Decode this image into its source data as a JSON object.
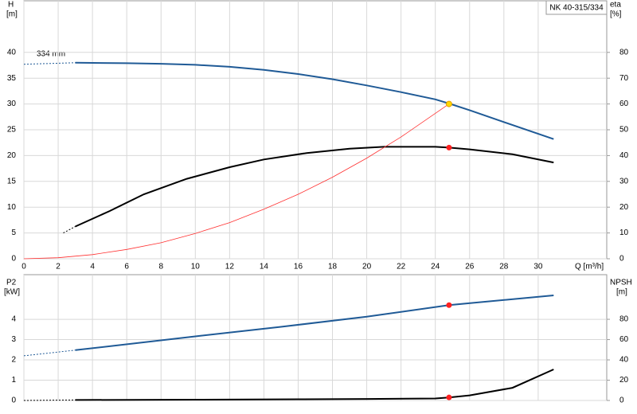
{
  "chart_data": [
    {
      "type": "line",
      "title": "NK 40-315/334",
      "annotation": "334 mm",
      "y_label": [
        "H",
        "[m]"
      ],
      "y2_label": [
        "eta",
        "[%]"
      ],
      "x_label": "Q [m³/h]",
      "xlim": [
        0,
        34
      ],
      "xticks": [
        0,
        2,
        4,
        6,
        8,
        10,
        12,
        14,
        16,
        18,
        20,
        22,
        24,
        26,
        28,
        30
      ],
      "show_xtick_labels": true,
      "ylim": [
        0,
        50
      ],
      "yticks": [
        0,
        5,
        10,
        15,
        20,
        25,
        30,
        35,
        40
      ],
      "y2lim": [
        0,
        100
      ],
      "y2ticks": [
        0,
        10,
        20,
        30,
        40,
        50,
        60,
        70,
        80
      ],
      "grid": true,
      "series": [
        {
          "style": "dashed",
          "color": "#1f5a96",
          "x": [
            0,
            3
          ],
          "values": [
            37.7,
            38
          ]
        },
        {
          "style": "solid",
          "color": "#1f5a96",
          "x": [
            3,
            6,
            8,
            10,
            12,
            14,
            16,
            18,
            20,
            22,
            24,
            24.8,
            26,
            28,
            30.9
          ],
          "values": [
            38,
            37.9,
            37.8,
            37.6,
            37.2,
            36.6,
            35.8,
            34.8,
            33.6,
            32.3,
            30.9,
            30.1,
            28.8,
            26.5,
            23.2
          ]
        },
        {
          "style": "dashed",
          "color": "#000000",
          "axis": "y2",
          "x": [
            2.3,
            3
          ],
          "values": [
            10,
            12.5
          ]
        },
        {
          "style": "solid",
          "color": "#000000",
          "axis": "y2",
          "x": [
            3,
            5,
            7,
            9.5,
            12,
            14,
            16.5,
            19,
            21,
            24,
            24.8,
            26,
            28.5,
            30.9
          ],
          "values": [
            12.5,
            18.5,
            25,
            31,
            35.5,
            38.5,
            41,
            42.7,
            43.4,
            43.4,
            43.1,
            42.4,
            40.5,
            37.3
          ]
        },
        {
          "style": "thin",
          "color": "#ff3030",
          "x": [
            0,
            2,
            4,
            6,
            8,
            10,
            12,
            14,
            16,
            18,
            20,
            22,
            24.8
          ],
          "values": [
            0,
            0.2,
            0.8,
            1.8,
            3.1,
            4.9,
            7,
            9.6,
            12.5,
            15.8,
            19.5,
            23.6,
            30
          ]
        },
        {
          "style": "marker",
          "color": "#ffd700",
          "x": [
            24.8
          ],
          "values": [
            30
          ]
        },
        {
          "style": "marker",
          "color": "#ff2020",
          "axis": "y2",
          "x": [
            24.8
          ],
          "values": [
            43.1
          ]
        }
      ]
    },
    {
      "type": "line",
      "y_label": [
        "P2",
        "[kW]"
      ],
      "y2_label": [
        "NPSH",
        "[m]"
      ],
      "xlim": [
        0,
        34
      ],
      "xticks": [
        0,
        2,
        4,
        6,
        8,
        10,
        12,
        14,
        16,
        18,
        20,
        22,
        24,
        26,
        28,
        30
      ],
      "show_xtick_labels": false,
      "ylim": [
        0,
        6.2
      ],
      "yticks": [
        0,
        1,
        2,
        3,
        4
      ],
      "y2lim": [
        0,
        124
      ],
      "y2ticks": [
        0,
        20,
        40,
        60,
        80
      ],
      "grid": true,
      "series": [
        {
          "style": "dashed",
          "color": "#1f5a96",
          "x": [
            0,
            3
          ],
          "values": [
            2.2,
            2.48
          ]
        },
        {
          "style": "solid",
          "color": "#1f5a96",
          "x": [
            3,
            10,
            15,
            20,
            24.8,
            30.9
          ],
          "values": [
            2.48,
            3.16,
            3.63,
            4.13,
            4.7,
            5.18
          ]
        },
        {
          "style": "dashed",
          "color": "#000000",
          "axis": "y2",
          "x": [
            0,
            3
          ],
          "values": [
            0,
            0.5
          ]
        },
        {
          "style": "solid",
          "color": "#000000",
          "axis": "y2",
          "x": [
            3,
            10,
            16,
            20,
            24,
            24.8,
            26,
            28.5,
            30.9
          ],
          "values": [
            0.5,
            0.8,
            1.2,
            1.5,
            2,
            3,
            5,
            12.5,
            30.6
          ]
        },
        {
          "style": "marker",
          "color": "#ff2020",
          "x": [
            24.8
          ],
          "values": [
            4.7
          ]
        },
        {
          "style": "marker",
          "color": "#ff2020",
          "axis": "y2",
          "x": [
            24.8
          ],
          "values": [
            3
          ]
        }
      ]
    }
  ]
}
